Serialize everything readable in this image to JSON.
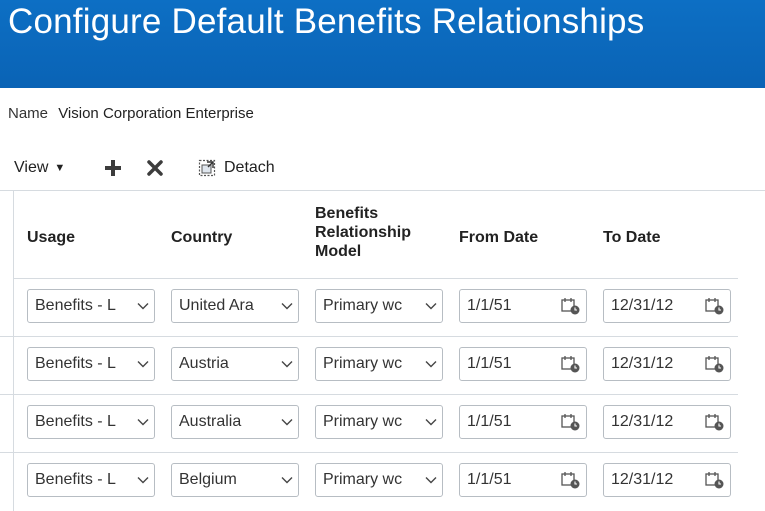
{
  "header": {
    "title": "Configure Default Benefits Relationships"
  },
  "name_field": {
    "label": "Name",
    "value": "Vision Corporation Enterprise"
  },
  "toolbar": {
    "view_label": "View",
    "add_icon": "plus-icon",
    "delete_icon": "x-icon",
    "detach_label": "Detach"
  },
  "table": {
    "columns": {
      "usage": "Usage",
      "country": "Country",
      "model_line1": "Benefits",
      "model_line2": "Relationship",
      "model_line3": "Model",
      "from": "From Date",
      "to": "To Date"
    },
    "rows": [
      {
        "usage": "Benefits - L",
        "country": "United Ara",
        "model": "Primary wc",
        "from": "1/1/51",
        "to": "12/31/12"
      },
      {
        "usage": "Benefits - L",
        "country": "Austria",
        "model": "Primary wc",
        "from": "1/1/51",
        "to": "12/31/12"
      },
      {
        "usage": "Benefits - L",
        "country": "Australia",
        "model": "Primary wc",
        "from": "1/1/51",
        "to": "12/31/12"
      },
      {
        "usage": "Benefits - L",
        "country": "Belgium",
        "model": "Primary wc",
        "from": "1/1/51",
        "to": "12/31/12"
      }
    ]
  },
  "colors": {
    "header_bg": "#0a63b5",
    "border": "#b7bdc3",
    "grid": "#d6dbe0"
  }
}
